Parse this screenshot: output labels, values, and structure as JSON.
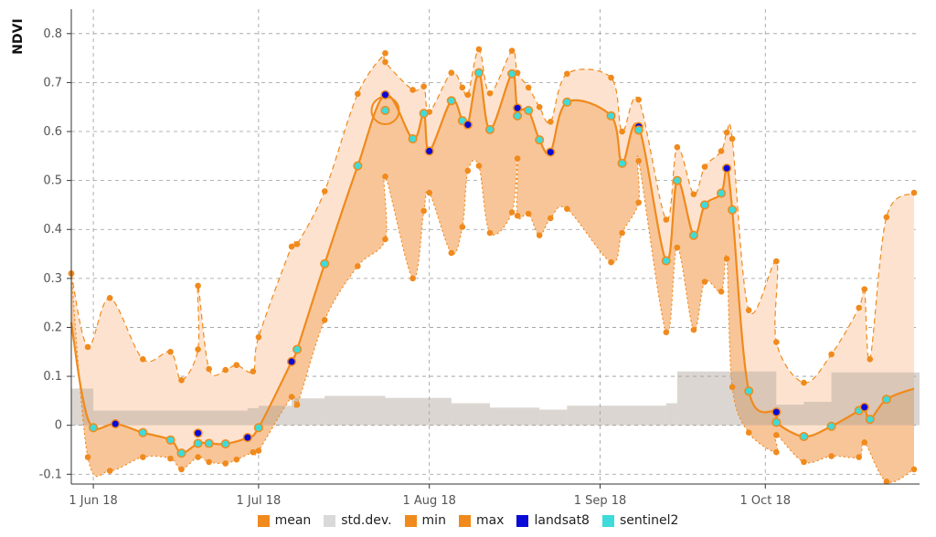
{
  "chart_data": {
    "type": "line",
    "ylabel": "NDVI",
    "ylim": [
      -0.12,
      0.85
    ],
    "yticks": [
      -0.1,
      0,
      0.1,
      0.2,
      0.3,
      0.4,
      0.5,
      0.6,
      0.7,
      0.8
    ],
    "yticklabels": [
      "-0.1",
      "0",
      "0.1",
      "0.2",
      "0.3",
      "0.4",
      "0.5",
      "0.6",
      "0.7",
      "0.8"
    ],
    "xlim": [
      "2018-05-28",
      "2018-10-29"
    ],
    "xticks": [
      "2018-06-01",
      "2018-07-01",
      "2018-08-01",
      "2018-09-01",
      "2018-10-01"
    ],
    "xticklabels": [
      "1 Jun 18",
      "1 Jul 18",
      "1 Aug 18",
      "1 Sep 18",
      "1 Oct 18"
    ],
    "grid": true,
    "legend_position": "bottom",
    "colors": {
      "mean": "#f08a1c",
      "std": "#d9d9d9",
      "min": "#f08a1c",
      "max": "#f08a1c",
      "landsat8": "#0a0ad6",
      "sentinel2": "#3ddbd9",
      "band_outer": "#fde3cf",
      "band_inner": "#f7bf8e",
      "std_bar": "#c8a58a"
    },
    "legend": [
      {
        "key": "mean",
        "label": "mean"
      },
      {
        "key": "std",
        "label": "std.dev."
      },
      {
        "key": "min",
        "label": "min"
      },
      {
        "key": "max",
        "label": "max"
      },
      {
        "key": "landsat8",
        "label": "landsat8"
      },
      {
        "key": "sentinel2",
        "label": "sentinel2"
      }
    ],
    "mean": [
      [
        "2018-05-28",
        0.21
      ],
      [
        "2018-05-30",
        0.06
      ],
      [
        "2018-06-01",
        -0.005
      ],
      [
        "2018-06-05",
        0.003
      ],
      [
        "2018-06-10",
        -0.015
      ],
      [
        "2018-06-15",
        -0.03
      ],
      [
        "2018-06-17",
        -0.057
      ],
      [
        "2018-06-20",
        -0.037
      ],
      [
        "2018-06-22",
        -0.037
      ],
      [
        "2018-06-25",
        -0.038
      ],
      [
        "2018-06-29",
        -0.025
      ],
      [
        "2018-07-01",
        -0.005
      ],
      [
        "2018-07-07",
        0.13
      ],
      [
        "2018-07-08",
        0.155
      ],
      [
        "2018-07-13",
        0.33
      ],
      [
        "2018-07-19",
        0.53
      ],
      [
        "2018-07-24",
        0.675
      ],
      [
        "2018-07-29",
        0.585
      ],
      [
        "2018-07-31",
        0.637
      ],
      [
        "2018-08-01",
        0.56
      ],
      [
        "2018-08-05",
        0.663
      ],
      [
        "2018-08-07",
        0.622
      ],
      [
        "2018-08-08",
        0.614
      ],
      [
        "2018-08-10",
        0.72
      ],
      [
        "2018-08-12",
        0.604
      ],
      [
        "2018-08-16",
        0.718
      ],
      [
        "2018-08-17",
        0.648
      ],
      [
        "2018-08-19",
        0.643
      ],
      [
        "2018-08-21",
        0.583
      ],
      [
        "2018-08-23",
        0.558
      ],
      [
        "2018-08-26",
        0.66
      ],
      [
        "2018-09-03",
        0.632
      ],
      [
        "2018-09-05",
        0.535
      ],
      [
        "2018-09-08",
        0.61
      ],
      [
        "2018-09-13",
        0.336
      ],
      [
        "2018-09-15",
        0.5
      ],
      [
        "2018-09-18",
        0.388
      ],
      [
        "2018-09-20",
        0.45
      ],
      [
        "2018-09-23",
        0.474
      ],
      [
        "2018-09-24",
        0.525
      ],
      [
        "2018-09-25",
        0.44
      ],
      [
        "2018-09-28",
        0.07
      ],
      [
        "2018-10-03",
        0.027
      ],
      [
        "2018-10-03",
        0.006
      ],
      [
        "2018-10-08",
        -0.023
      ],
      [
        "2018-10-13",
        -0.002
      ],
      [
        "2018-10-18",
        0.03
      ],
      [
        "2018-10-19",
        0.037
      ],
      [
        "2018-10-20",
        0.012
      ],
      [
        "2018-10-23",
        0.053
      ],
      [
        "2018-10-28",
        0.075
      ]
    ],
    "observations": [
      {
        "date": "2018-06-01",
        "value": -0.005,
        "sensor": "sentinel2"
      },
      {
        "date": "2018-06-05",
        "value": 0.003,
        "sensor": "landsat8"
      },
      {
        "date": "2018-06-10",
        "value": -0.015,
        "sensor": "sentinel2"
      },
      {
        "date": "2018-06-15",
        "value": -0.03,
        "sensor": "sentinel2"
      },
      {
        "date": "2018-06-17",
        "value": -0.057,
        "sensor": "sentinel2"
      },
      {
        "date": "2018-06-20",
        "value": -0.016,
        "sensor": "landsat8"
      },
      {
        "date": "2018-06-20",
        "value": -0.037,
        "sensor": "sentinel2"
      },
      {
        "date": "2018-06-22",
        "value": -0.037,
        "sensor": "sentinel2"
      },
      {
        "date": "2018-06-25",
        "value": -0.038,
        "sensor": "sentinel2"
      },
      {
        "date": "2018-06-29",
        "value": -0.025,
        "sensor": "landsat8"
      },
      {
        "date": "2018-07-01",
        "value": -0.005,
        "sensor": "sentinel2"
      },
      {
        "date": "2018-07-07",
        "value": 0.13,
        "sensor": "landsat8"
      },
      {
        "date": "2018-07-08",
        "value": 0.155,
        "sensor": "sentinel2"
      },
      {
        "date": "2018-07-13",
        "value": 0.33,
        "sensor": "sentinel2"
      },
      {
        "date": "2018-07-19",
        "value": 0.53,
        "sensor": "sentinel2"
      },
      {
        "date": "2018-07-24",
        "value": 0.675,
        "sensor": "landsat8"
      },
      {
        "date": "2018-07-24",
        "value": 0.643,
        "sensor": "sentinel2"
      },
      {
        "date": "2018-07-29",
        "value": 0.585,
        "sensor": "sentinel2"
      },
      {
        "date": "2018-07-31",
        "value": 0.637,
        "sensor": "sentinel2"
      },
      {
        "date": "2018-08-01",
        "value": 0.56,
        "sensor": "landsat8"
      },
      {
        "date": "2018-08-05",
        "value": 0.663,
        "sensor": "sentinel2"
      },
      {
        "date": "2018-08-07",
        "value": 0.622,
        "sensor": "sentinel2"
      },
      {
        "date": "2018-08-08",
        "value": 0.614,
        "sensor": "landsat8"
      },
      {
        "date": "2018-08-10",
        "value": 0.72,
        "sensor": "sentinel2"
      },
      {
        "date": "2018-08-12",
        "value": 0.604,
        "sensor": "sentinel2"
      },
      {
        "date": "2018-08-16",
        "value": 0.718,
        "sensor": "sentinel2"
      },
      {
        "date": "2018-08-17",
        "value": 0.648,
        "sensor": "landsat8"
      },
      {
        "date": "2018-08-17",
        "value": 0.632,
        "sensor": "sentinel2"
      },
      {
        "date": "2018-08-19",
        "value": 0.643,
        "sensor": "sentinel2"
      },
      {
        "date": "2018-08-21",
        "value": 0.583,
        "sensor": "sentinel2"
      },
      {
        "date": "2018-08-23",
        "value": 0.558,
        "sensor": "landsat8"
      },
      {
        "date": "2018-08-26",
        "value": 0.66,
        "sensor": "sentinel2"
      },
      {
        "date": "2018-09-03",
        "value": 0.632,
        "sensor": "sentinel2"
      },
      {
        "date": "2018-09-05",
        "value": 0.535,
        "sensor": "sentinel2"
      },
      {
        "date": "2018-09-08",
        "value": 0.61,
        "sensor": "landsat8"
      },
      {
        "date": "2018-09-08",
        "value": 0.603,
        "sensor": "sentinel2"
      },
      {
        "date": "2018-09-13",
        "value": 0.336,
        "sensor": "sentinel2"
      },
      {
        "date": "2018-09-15",
        "value": 0.5,
        "sensor": "sentinel2"
      },
      {
        "date": "2018-09-18",
        "value": 0.388,
        "sensor": "sentinel2"
      },
      {
        "date": "2018-09-20",
        "value": 0.45,
        "sensor": "sentinel2"
      },
      {
        "date": "2018-09-23",
        "value": 0.474,
        "sensor": "sentinel2"
      },
      {
        "date": "2018-09-24",
        "value": 0.525,
        "sensor": "landsat8"
      },
      {
        "date": "2018-09-25",
        "value": 0.44,
        "sensor": "sentinel2"
      },
      {
        "date": "2018-09-28",
        "value": 0.07,
        "sensor": "sentinel2"
      },
      {
        "date": "2018-10-03",
        "value": 0.027,
        "sensor": "landsat8"
      },
      {
        "date": "2018-10-03",
        "value": 0.006,
        "sensor": "sentinel2"
      },
      {
        "date": "2018-10-08",
        "value": -0.023,
        "sensor": "sentinel2"
      },
      {
        "date": "2018-10-13",
        "value": -0.002,
        "sensor": "sentinel2"
      },
      {
        "date": "2018-10-18",
        "value": 0.03,
        "sensor": "sentinel2"
      },
      {
        "date": "2018-10-19",
        "value": 0.037,
        "sensor": "landsat8"
      },
      {
        "date": "2018-10-20",
        "value": 0.012,
        "sensor": "sentinel2"
      },
      {
        "date": "2018-10-23",
        "value": 0.053,
        "sensor": "sentinel2"
      }
    ],
    "highlighted_observation": {
      "date": "2018-07-24",
      "value": 0.643
    },
    "max": [
      [
        "2018-05-28",
        0.31
      ],
      [
        "2018-05-31",
        0.16
      ],
      [
        "2018-06-04",
        0.26
      ],
      [
        "2018-06-10",
        0.135
      ],
      [
        "2018-06-15",
        0.15
      ],
      [
        "2018-06-17",
        0.092
      ],
      [
        "2018-06-20",
        0.155
      ],
      [
        "2018-06-20",
        0.285
      ],
      [
        "2018-06-22",
        0.115
      ],
      [
        "2018-06-25",
        0.113
      ],
      [
        "2018-06-27",
        0.123
      ],
      [
        "2018-06-30",
        0.11
      ],
      [
        "2018-07-01",
        0.18
      ],
      [
        "2018-07-07",
        0.365
      ],
      [
        "2018-07-08",
        0.37
      ],
      [
        "2018-07-13",
        0.478
      ],
      [
        "2018-07-19",
        0.677
      ],
      [
        "2018-07-24",
        0.76
      ],
      [
        "2018-07-24",
        0.742
      ],
      [
        "2018-07-29",
        0.685
      ],
      [
        "2018-07-31",
        0.692
      ],
      [
        "2018-08-01",
        0.64
      ],
      [
        "2018-08-05",
        0.72
      ],
      [
        "2018-08-07",
        0.69
      ],
      [
        "2018-08-08",
        0.675
      ],
      [
        "2018-08-10",
        0.768
      ],
      [
        "2018-08-12",
        0.678
      ],
      [
        "2018-08-16",
        0.765
      ],
      [
        "2018-08-17",
        0.72
      ],
      [
        "2018-08-19",
        0.69
      ],
      [
        "2018-08-21",
        0.65
      ],
      [
        "2018-08-23",
        0.62
      ],
      [
        "2018-08-26",
        0.718
      ],
      [
        "2018-09-03",
        0.71
      ],
      [
        "2018-09-05",
        0.6
      ],
      [
        "2018-09-08",
        0.665
      ],
      [
        "2018-09-13",
        0.42
      ],
      [
        "2018-09-15",
        0.568
      ],
      [
        "2018-09-18",
        0.472
      ],
      [
        "2018-09-20",
        0.528
      ],
      [
        "2018-09-23",
        0.56
      ],
      [
        "2018-09-24",
        0.598
      ],
      [
        "2018-09-25",
        0.585
      ],
      [
        "2018-09-28",
        0.235
      ],
      [
        "2018-10-03",
        0.335
      ],
      [
        "2018-10-03",
        0.17
      ],
      [
        "2018-10-08",
        0.087
      ],
      [
        "2018-10-13",
        0.145
      ],
      [
        "2018-10-18",
        0.24
      ],
      [
        "2018-10-19",
        0.278
      ],
      [
        "2018-10-20",
        0.135
      ],
      [
        "2018-10-23",
        0.425
      ],
      [
        "2018-10-28",
        0.475
      ]
    ],
    "min": [
      [
        "2018-05-28",
        0.31
      ],
      [
        "2018-05-31",
        -0.065
      ],
      [
        "2018-06-04",
        -0.093
      ],
      [
        "2018-06-10",
        -0.065
      ],
      [
        "2018-06-15",
        -0.068
      ],
      [
        "2018-06-17",
        -0.09
      ],
      [
        "2018-06-20",
        -0.065
      ],
      [
        "2018-06-22",
        -0.075
      ],
      [
        "2018-06-25",
        -0.078
      ],
      [
        "2018-06-27",
        -0.07
      ],
      [
        "2018-06-30",
        -0.055
      ],
      [
        "2018-07-01",
        -0.052
      ],
      [
        "2018-07-07",
        0.058
      ],
      [
        "2018-07-08",
        0.042
      ],
      [
        "2018-07-13",
        0.215
      ],
      [
        "2018-07-19",
        0.325
      ],
      [
        "2018-07-24",
        0.38
      ],
      [
        "2018-07-24",
        0.508
      ],
      [
        "2018-07-29",
        0.3
      ],
      [
        "2018-07-31",
        0.438
      ],
      [
        "2018-08-01",
        0.475
      ],
      [
        "2018-08-05",
        0.352
      ],
      [
        "2018-08-07",
        0.405
      ],
      [
        "2018-08-08",
        0.52
      ],
      [
        "2018-08-10",
        0.53
      ],
      [
        "2018-08-12",
        0.393
      ],
      [
        "2018-08-16",
        0.435
      ],
      [
        "2018-08-17",
        0.545
      ],
      [
        "2018-08-17",
        0.428
      ],
      [
        "2018-08-19",
        0.432
      ],
      [
        "2018-08-21",
        0.388
      ],
      [
        "2018-08-23",
        0.423
      ],
      [
        "2018-08-26",
        0.442
      ],
      [
        "2018-09-03",
        0.333
      ],
      [
        "2018-09-05",
        0.393
      ],
      [
        "2018-09-08",
        0.455
      ],
      [
        "2018-09-08",
        0.54
      ],
      [
        "2018-09-13",
        0.19
      ],
      [
        "2018-09-15",
        0.363
      ],
      [
        "2018-09-18",
        0.195
      ],
      [
        "2018-09-20",
        0.293
      ],
      [
        "2018-09-23",
        0.273
      ],
      [
        "2018-09-24",
        0.34
      ],
      [
        "2018-09-25",
        0.078
      ],
      [
        "2018-09-28",
        -0.015
      ],
      [
        "2018-10-03",
        -0.055
      ],
      [
        "2018-10-03",
        -0.02
      ],
      [
        "2018-10-08",
        -0.075
      ],
      [
        "2018-10-13",
        -0.063
      ],
      [
        "2018-10-18",
        -0.065
      ],
      [
        "2018-10-19",
        -0.035
      ],
      [
        "2018-10-23",
        -0.115
      ],
      [
        "2018-10-28",
        -0.09
      ]
    ],
    "std_dev": [
      [
        "2018-05-28",
        "2018-06-01",
        0.075
      ],
      [
        "2018-06-01",
        "2018-06-29",
        0.03
      ],
      [
        "2018-06-29",
        "2018-07-01",
        0.035
      ],
      [
        "2018-07-01",
        "2018-07-07",
        0.04
      ],
      [
        "2018-07-07",
        "2018-07-13",
        0.055
      ],
      [
        "2018-07-13",
        "2018-07-24",
        0.06
      ],
      [
        "2018-07-24",
        "2018-08-05",
        0.056
      ],
      [
        "2018-08-05",
        "2018-08-12",
        0.045
      ],
      [
        "2018-08-12",
        "2018-08-21",
        0.036
      ],
      [
        "2018-08-21",
        "2018-08-26",
        0.032
      ],
      [
        "2018-08-26",
        "2018-09-13",
        0.04
      ],
      [
        "2018-09-13",
        "2018-09-15",
        0.045
      ],
      [
        "2018-09-15",
        "2018-10-03",
        0.11
      ],
      [
        "2018-10-03",
        "2018-10-08",
        0.042
      ],
      [
        "2018-10-08",
        "2018-10-13",
        0.048
      ],
      [
        "2018-10-13",
        "2018-10-29",
        0.108
      ]
    ]
  }
}
